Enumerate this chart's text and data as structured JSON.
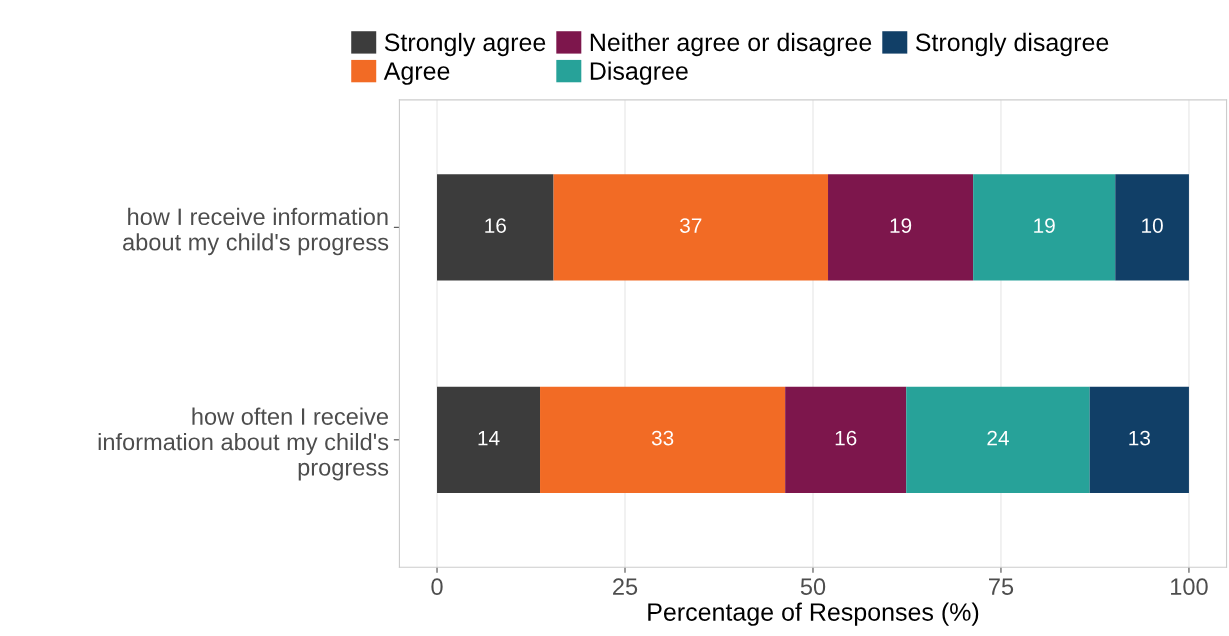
{
  "chart_data": {
    "type": "bar",
    "orientation": "horizontal",
    "stacked": true,
    "xlabel": "Percentage of Responses (%)",
    "categories": [
      "how I receive information\nabout my child's progress",
      "how often I receive\ninformation about my child's\nprogress"
    ],
    "series": [
      {
        "name": "Strongly agree",
        "color": "#3c3c3c",
        "values": [
          15.5,
          13.7
        ],
        "value_labels": [
          "16",
          "14"
        ]
      },
      {
        "name": "Agree",
        "color": "#f26b25",
        "values": [
          36.5,
          32.6
        ],
        "value_labels": [
          "37",
          "33"
        ]
      },
      {
        "name": "Neither agree or disagree",
        "color": "#7d164c",
        "values": [
          19.3,
          16.1
        ],
        "value_labels": [
          "19",
          "16"
        ]
      },
      {
        "name": "Disagree",
        "color": "#27a299",
        "values": [
          18.9,
          24.4
        ],
        "value_labels": [
          "19",
          "24"
        ]
      },
      {
        "name": "Strongly disagree",
        "color": "#113f67",
        "values": [
          9.8,
          13.2
        ],
        "value_labels": [
          "10",
          "13"
        ]
      }
    ],
    "xlim": [
      -5,
      105
    ],
    "xticks": [
      0,
      25,
      50,
      75,
      100
    ],
    "grid": "x",
    "legend": "top"
  }
}
